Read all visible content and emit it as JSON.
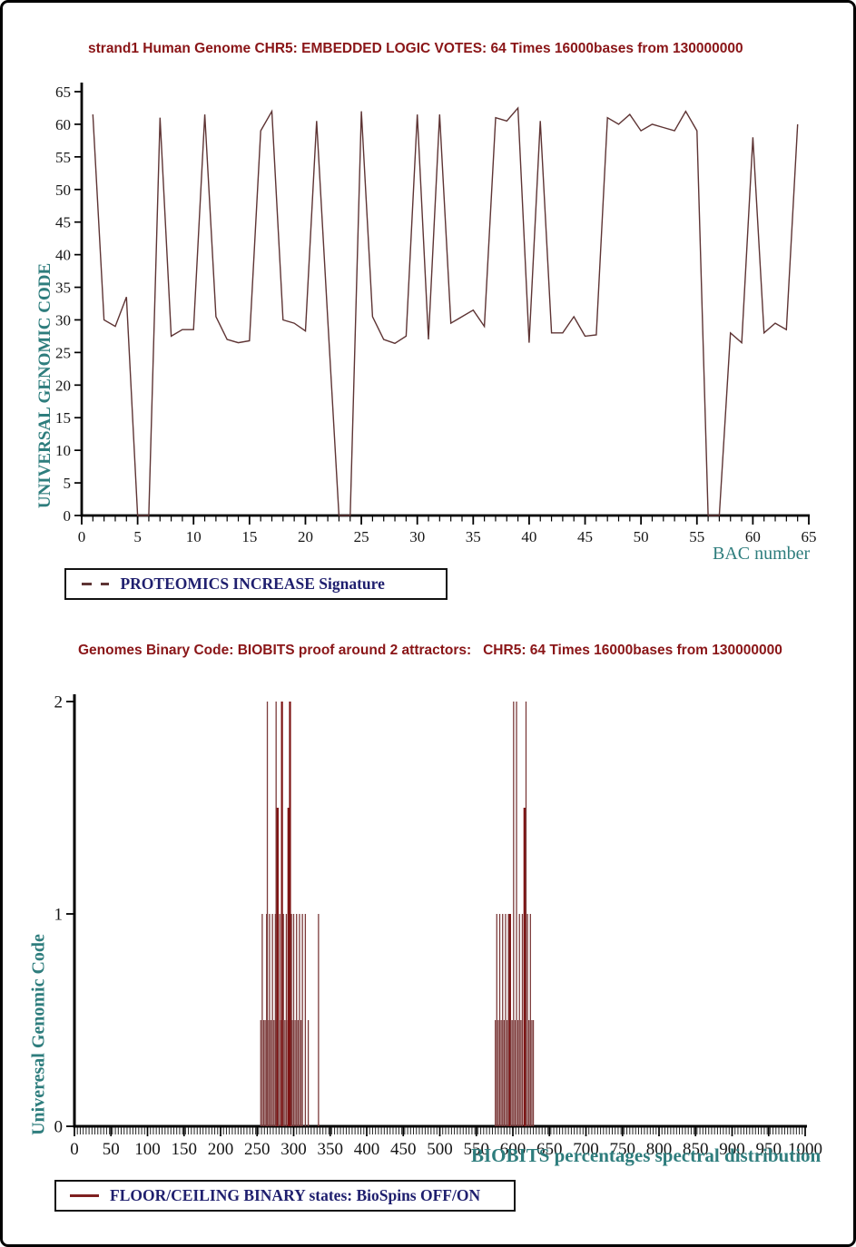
{
  "colors": {
    "title_red": "#8a1517",
    "axis_title_teal": "#2e7d7d",
    "legend_navy": "#1f1f6e",
    "line_maroon": "#5e3434",
    "stem_red": "#7e1414",
    "stem_brown": "#7c3b3b",
    "axis_black": "#000000"
  },
  "chart1": {
    "title": "strand1 Human Genome CHR5: EMBEDDED LOGIC VOTES: 64 Times 16000bases from 130000000",
    "ylabel": "UNIVERSAL GENOMIC CODE",
    "xlabel": "BAC number",
    "legend": "PROTEOMICS INCREASE Signature"
  },
  "chart2": {
    "title": "Genomes Binary Code: BIOBITS proof around 2 attractors:   CHR5: 64 Times 16000bases from 130000000",
    "ylabel": "Univeresal Genomic Code",
    "xlabel": "BIOBITS percentages spectral distribution",
    "legend": "FLOOR/CEILING BINARY states: BioSpins OFF/ON"
  },
  "chart_data": [
    {
      "type": "line",
      "title": "strand1 Human Genome CHR5: EMBEDDED LOGIC VOTES: 64 Times 16000bases from 130000000",
      "xlabel": "BAC number",
      "ylabel": "UNIVERSAL GENOMIC CODE",
      "legend_label": "PROTEOMICS INCREASE Signature",
      "xlim": [
        0,
        65
      ],
      "ylim": [
        0,
        65
      ],
      "xticks": [
        0,
        5,
        10,
        15,
        20,
        25,
        30,
        35,
        40,
        45,
        50,
        55,
        60,
        65
      ],
      "yticks": [
        0,
        5,
        10,
        15,
        20,
        25,
        30,
        35,
        40,
        45,
        50,
        55,
        60,
        65
      ],
      "x_minor_tick_step": 1,
      "grid": false,
      "legend_position": "below-left",
      "x_start": 1,
      "values": [
        61.5,
        30,
        29,
        33.5,
        0,
        0,
        61,
        27.5,
        28.5,
        28.5,
        61.5,
        30.5,
        27,
        26.5,
        26.8,
        59,
        62,
        30,
        29.5,
        28.3,
        60.5,
        30,
        0,
        0,
        62,
        30.5,
        27,
        26.4,
        27.5,
        61.5,
        27,
        61.5,
        29.5,
        30.5,
        31.5,
        29,
        61,
        60.5,
        62.5,
        26.5,
        60.5,
        28,
        28,
        30.5,
        27.5,
        27.7,
        61,
        60,
        61.5,
        59,
        60,
        59.5,
        59,
        62,
        59,
        0,
        0,
        28,
        26.5,
        58,
        28,
        29.5,
        28.5,
        60
      ]
    },
    {
      "type": "stem",
      "title": "Genomes Binary Code: BIOBITS proof around 2 attractors:   CHR5: 64 Times 16000bases from 130000000",
      "xlabel": "BIOBITS percentages spectral distribution",
      "ylabel": "Univeresal Genomic Code",
      "legend_label": "FLOOR/CEILING BINARY states: BioSpins OFF/ON",
      "xlim": [
        0,
        1000
      ],
      "ylim": [
        0,
        2
      ],
      "xticks": [
        0,
        50,
        100,
        150,
        200,
        250,
        300,
        350,
        400,
        450,
        500,
        550,
        600,
        650,
        700,
        750,
        800,
        850,
        900,
        950,
        1000
      ],
      "yticks": [
        0,
        1,
        2
      ],
      "x_minor_tick_step": 4,
      "grid": false,
      "legend_position": "below-left",
      "stems": [
        [
          255,
          0.5
        ],
        [
          257,
          1
        ],
        [
          259,
          0.5
        ],
        [
          261,
          0.5
        ],
        [
          263,
          1
        ],
        [
          264,
          2
        ],
        [
          266,
          0.5
        ],
        [
          267,
          1
        ],
        [
          269,
          0.5
        ],
        [
          271,
          1
        ],
        [
          273,
          0.5
        ],
        [
          275,
          1
        ],
        [
          276,
          2
        ],
        [
          278,
          1.5,
          2.4
        ],
        [
          279,
          0.5
        ],
        [
          281,
          1
        ],
        [
          283,
          0.5
        ],
        [
          284,
          2,
          2.2
        ],
        [
          286,
          1
        ],
        [
          288,
          0.5
        ],
        [
          290,
          1
        ],
        [
          292,
          0.5
        ],
        [
          293,
          1.5,
          2.4
        ],
        [
          295,
          2,
          2.2
        ],
        [
          297,
          1
        ],
        [
          298,
          0.5
        ],
        [
          300,
          1
        ],
        [
          302,
          0.5
        ],
        [
          304,
          1
        ],
        [
          306,
          0.5
        ],
        [
          308,
          1
        ],
        [
          310,
          0.5
        ],
        [
          312,
          1
        ],
        [
          316,
          1
        ],
        [
          320,
          0.5
        ],
        [
          334,
          1
        ],
        [
          576,
          0.5
        ],
        [
          578,
          1
        ],
        [
          580,
          0.5
        ],
        [
          582,
          1
        ],
        [
          584,
          0.5
        ],
        [
          586,
          1
        ],
        [
          588,
          0.5
        ],
        [
          590,
          1
        ],
        [
          592,
          0.5
        ],
        [
          594,
          1
        ],
        [
          596,
          1,
          2.4
        ],
        [
          597,
          0.5
        ],
        [
          599,
          0.5
        ],
        [
          601,
          2
        ],
        [
          603,
          0.5
        ],
        [
          605,
          2
        ],
        [
          607,
          0.5
        ],
        [
          609,
          1
        ],
        [
          611,
          0.5
        ],
        [
          613,
          1
        ],
        [
          616,
          1.5,
          2.4
        ],
        [
          618,
          2
        ],
        [
          620,
          1
        ],
        [
          622,
          0.5
        ],
        [
          624,
          1
        ],
        [
          626,
          0.5
        ],
        [
          628,
          0.5
        ]
      ]
    }
  ]
}
